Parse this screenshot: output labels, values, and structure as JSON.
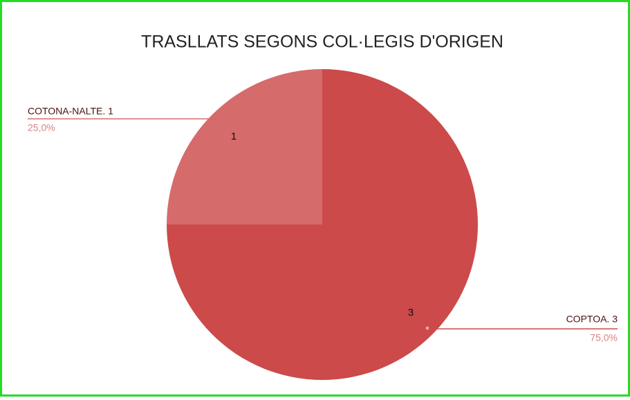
{
  "chart_data": {
    "type": "pie",
    "title": "TRASLLATS SEGONS COL·LEGIS D'ORIGEN",
    "categories": [
      "COPTOA. 3",
      "COTONA-NALTE. 1"
    ],
    "values": [
      3,
      1
    ],
    "percentages": [
      75,
      25
    ],
    "percentage_labels": [
      "75,0%",
      "25,0%"
    ],
    "colors": [
      "#cc4a4a",
      "#d66b6b"
    ]
  }
}
